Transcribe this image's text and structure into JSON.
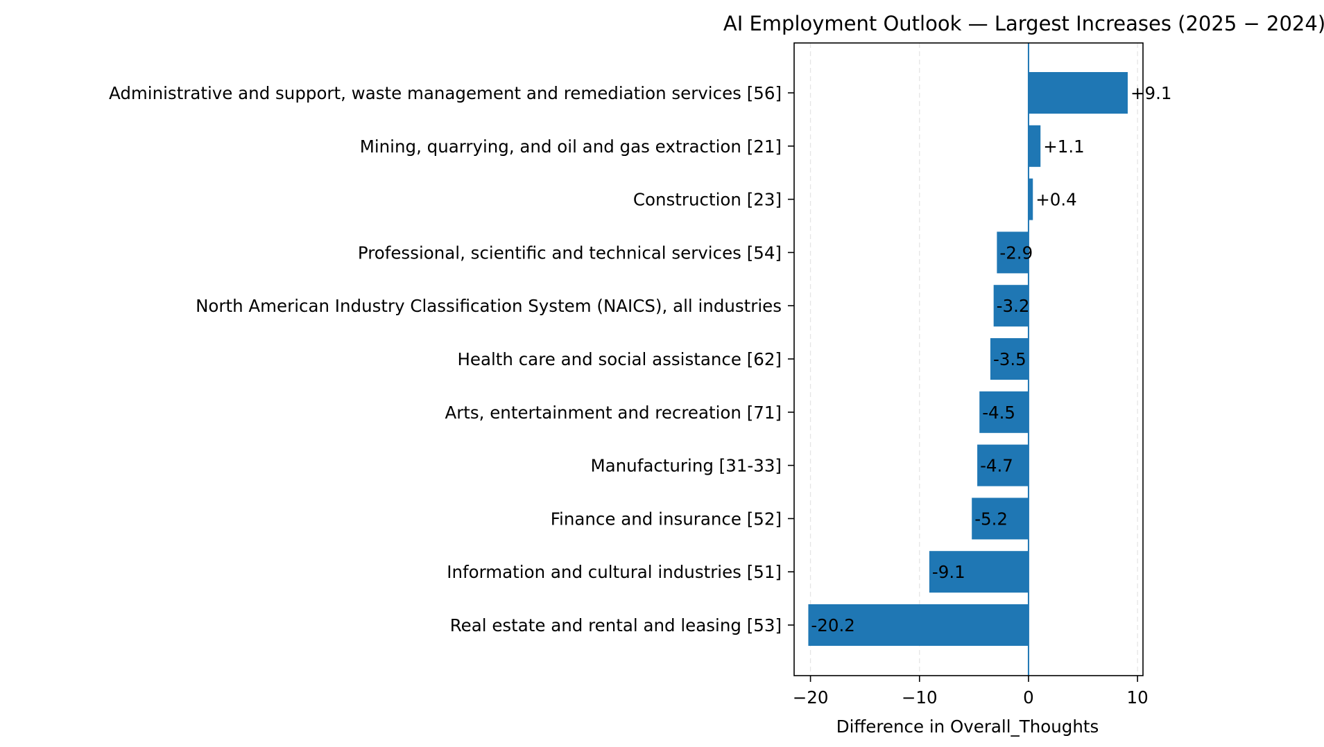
{
  "colors": {
    "bar": "#1f77b4",
    "zero_line": "#1f77b4",
    "grid": "#e5e5e5",
    "text": "#000000",
    "background": "#ffffff"
  },
  "chart_data": {
    "type": "bar",
    "orientation": "horizontal",
    "title": "AI Employment Outlook — Largest Increases (2025 − 2024)",
    "xlabel": "Difference in Overall_Thoughts",
    "ylabel": "",
    "xlim": [
      -21.5,
      10.5
    ],
    "xticks": [
      -20,
      -10,
      0,
      10
    ],
    "xtick_labels": [
      "−20",
      "−10",
      "0",
      "10"
    ],
    "grid": "vertical dashed",
    "categories": [
      "Administrative and support, waste management and remediation services [56]",
      "Mining, quarrying, and oil and gas extraction [21]",
      "Construction [23]",
      "Professional, scientific and technical services [54]",
      "North American Industry Classification System (NAICS), all industries",
      "Health care and social assistance [62]",
      "Arts, entertainment and recreation [71]",
      "Manufacturing [31-33]",
      "Finance and insurance [52]",
      "Information and cultural industries [51]",
      "Real estate and rental and leasing [53]"
    ],
    "values": [
      9.1,
      1.1,
      0.4,
      -2.9,
      -3.2,
      -3.5,
      -4.5,
      -4.7,
      -5.2,
      -9.1,
      -20.2
    ],
    "value_labels": [
      "+9.1",
      "+1.1",
      "+0.4",
      "-2.9",
      "-3.2",
      "-3.5",
      "-4.5",
      "-4.7",
      "-5.2",
      "-9.1",
      "-20.2"
    ]
  }
}
